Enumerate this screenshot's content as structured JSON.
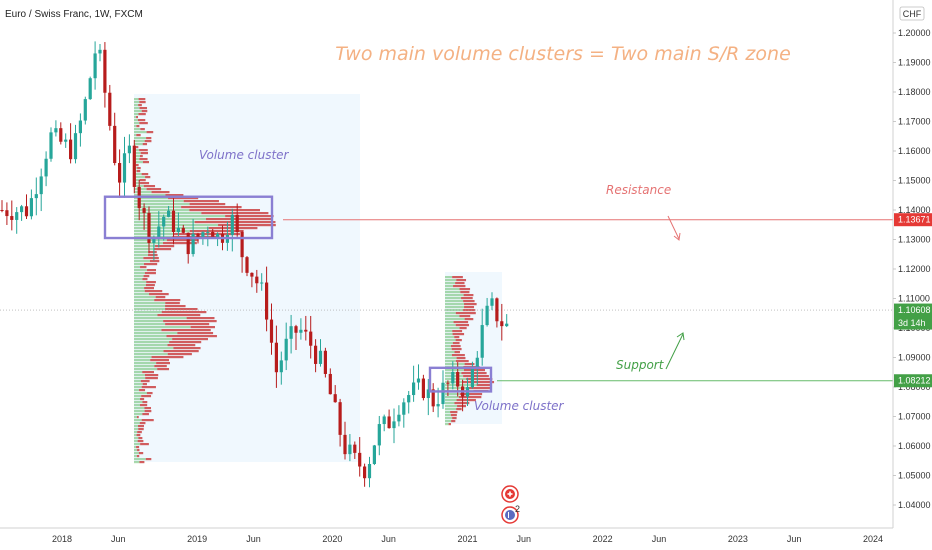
{
  "header": {
    "title": "Euro / Swiss Franc, 1W, FXCM",
    "currency_badge": "CHF"
  },
  "chart_data": {
    "type": "candlestick",
    "instrument": "Euro / Swiss Franc, 1W, FXCM",
    "currency": "CHF",
    "y_ticks": [
      "1.20000",
      "1.19000",
      "1.18000",
      "1.17000",
      "1.16000",
      "1.15000",
      "1.14000",
      "1.13000",
      "1.12000",
      "1.11000",
      "1.10000",
      "1.09000",
      "1.08000",
      "1.07000",
      "1.06000",
      "1.05000",
      "1.04000"
    ],
    "y_top_tick": "1.20000",
    "ylim": [
      1.0345,
      1.2035
    ],
    "x_ticks": [
      "2018",
      "Jun",
      "2019",
      "Jun",
      "2020",
      "Jun",
      "2021",
      "Jun",
      "2022",
      "Jun",
      "2023",
      "Jun",
      "2024"
    ],
    "x_tick_dates": [
      "2018-01",
      "2018-06",
      "2019-01",
      "2019-06",
      "2020-01",
      "2020-06",
      "2021-01",
      "2021-06",
      "2022-01",
      "2022-06",
      "2023-01",
      "2023-06",
      "2024-01"
    ],
    "price_path": [
      [
        "2017-10",
        1.14
      ],
      [
        "2017-12",
        1.165
      ],
      [
        "2018-02",
        1.16
      ],
      [
        "2018-03",
        1.175
      ],
      [
        "2018-04",
        1.195
      ],
      [
        "2018-04",
        1.2
      ],
      [
        "2018-05",
        1.175
      ],
      [
        "2018-06",
        1.15
      ],
      [
        "2018-07",
        1.16
      ],
      [
        "2018-08",
        1.14
      ],
      [
        "2018-09",
        1.13
      ],
      [
        "2018-10",
        1.138
      ],
      [
        "2018-11",
        1.135
      ],
      [
        "2018-12",
        1.128
      ],
      [
        "2019-01",
        1.13
      ],
      [
        "2019-02",
        1.135
      ],
      [
        "2019-03",
        1.13
      ],
      [
        "2019-04",
        1.138
      ],
      [
        "2019-05",
        1.125
      ],
      [
        "2019-06",
        1.118
      ],
      [
        "2019-07",
        1.11
      ],
      [
        "2019-08",
        1.085
      ],
      [
        "2019-09",
        1.095
      ],
      [
        "2019-10",
        1.1
      ],
      [
        "2019-11",
        1.095
      ],
      [
        "2019-12",
        1.088
      ],
      [
        "2020-01",
        1.075
      ],
      [
        "2020-02",
        1.06
      ],
      [
        "2020-03",
        1.055
      ],
      [
        "2020-04",
        1.052
      ],
      [
        "2020-05",
        1.065
      ],
      [
        "2020-06",
        1.068
      ],
      [
        "2020-07",
        1.075
      ],
      [
        "2020-08",
        1.078
      ],
      [
        "2020-09",
        1.08
      ],
      [
        "2020-10",
        1.075
      ],
      [
        "2020-11",
        1.08
      ],
      [
        "2020-12",
        1.082
      ],
      [
        "2021-01",
        1.078
      ],
      [
        "2021-02",
        1.095
      ],
      [
        "2021-03",
        1.108
      ],
      [
        "2021-04",
        1.102
      ],
      [
        "2021-05",
        1.099
      ],
      [
        "2021-05",
        1.106
      ]
    ],
    "levels": [
      {
        "name": "Resistance",
        "value": 1.13671,
        "label": "1.13671",
        "color": "#e57373"
      },
      {
        "name": "Support",
        "value": 1.08212,
        "label": "1.08212",
        "color": "#66bb6a"
      }
    ],
    "last_price": {
      "value": 1.10608,
      "label": "1.10608",
      "countdown": "3d 14h",
      "color": "#43a047"
    },
    "volume_clusters": [
      {
        "label": "Volume cluster",
        "x0": "2018-10",
        "x1": "2019-08",
        "y0": 1.1305,
        "y1": 1.1445
      },
      {
        "label": "Volume cluster",
        "x0": "2020-11",
        "x1": "2021-03",
        "y0": 1.0785,
        "y1": 1.0865
      }
    ],
    "annotations": {
      "headline": "Two main volume clusters = Two main S/R zone",
      "resistance": "Resistance",
      "support": "Support",
      "cluster_label": "Volume cluster"
    },
    "event_markers": {
      "count_label": "2"
    },
    "colors": {
      "up": "#26a69a",
      "down": "#b71c1c",
      "headline": "#f4b183",
      "cluster": "#8a7fd3"
    }
  }
}
